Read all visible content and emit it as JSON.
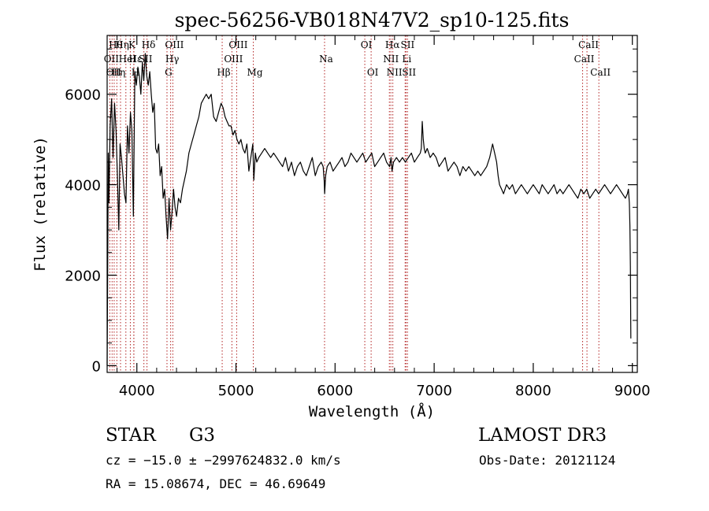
{
  "chart_data": {
    "type": "line",
    "title": "spec-56256-VB018N47V2_sp10-125.fits",
    "xlabel": "Wavelength (Å)",
    "ylabel": "Flux (relative)",
    "xlim": [
      3700,
      9050
    ],
    "ylim": [
      -150,
      7300
    ],
    "x_ticks": [
      4000,
      5000,
      6000,
      7000,
      8000,
      9000
    ],
    "y_ticks": [
      0,
      2000,
      4000,
      6000
    ],
    "grid": false,
    "series": [
      {
        "x": [
          3700,
          3712,
          3718,
          3730,
          3745,
          3760,
          3775,
          3790,
          3805,
          3818,
          3830,
          3845,
          3860,
          3875,
          3890,
          3905,
          3920,
          3935,
          3950,
          3965,
          3980,
          3995,
          4010,
          4025,
          4040,
          4055,
          4070,
          4085,
          4100,
          4115,
          4130,
          4145,
          4160,
          4175,
          4190,
          4205,
          4220,
          4235,
          4250,
          4265,
          4280,
          4295,
          4310,
          4325,
          4340,
          4355,
          4370,
          4385,
          4400,
          4420,
          4440,
          4460,
          4480,
          4500,
          4525,
          4550,
          4575,
          4600,
          4625,
          4650,
          4675,
          4700,
          4725,
          4750,
          4775,
          4800,
          4825,
          4850,
          4870,
          4890,
          4910,
          4930,
          4950,
          4970,
          4990,
          5010,
          5030,
          5050,
          5070,
          5090,
          5110,
          5130,
          5150,
          5170,
          5180,
          5195,
          5210,
          5230,
          5260,
          5290,
          5320,
          5350,
          5380,
          5410,
          5440,
          5470,
          5500,
          5530,
          5560,
          5590,
          5620,
          5650,
          5680,
          5710,
          5740,
          5770,
          5800,
          5830,
          5860,
          5880,
          5890,
          5895,
          5905,
          5920,
          5950,
          5980,
          6010,
          6040,
          6070,
          6100,
          6130,
          6160,
          6190,
          6220,
          6250,
          6280,
          6310,
          6340,
          6370,
          6400,
          6430,
          6460,
          6490,
          6520,
          6550,
          6565,
          6575,
          6590,
          6620,
          6650,
          6680,
          6710,
          6740,
          6770,
          6800,
          6830,
          6860,
          6870,
          6880,
          6890,
          6900,
          6910,
          6930,
          6960,
          6990,
          7020,
          7050,
          7080,
          7110,
          7140,
          7170,
          7200,
          7230,
          7260,
          7290,
          7320,
          7350,
          7380,
          7410,
          7440,
          7470,
          7500,
          7530,
          7560,
          7590,
          7610,
          7630,
          7645,
          7660,
          7680,
          7700,
          7730,
          7760,
          7790,
          7820,
          7850,
          7880,
          7910,
          7940,
          7970,
          8000,
          8030,
          8060,
          8090,
          8120,
          8150,
          8180,
          8210,
          8240,
          8270,
          8300,
          8330,
          8360,
          8390,
          8420,
          8450,
          8480,
          8510,
          8540,
          8570,
          8600,
          8630,
          8660,
          8690,
          8720,
          8750,
          8780,
          8810,
          8840,
          8870,
          8900,
          8930,
          8950,
          8960,
          8970,
          8975,
          8980,
          8985
        ],
        "y": [
          0,
          4700,
          3600,
          5300,
          5900,
          4600,
          5800,
          5200,
          4100,
          3000,
          4900,
          4600,
          4200,
          3800,
          3600,
          5300,
          4700,
          5600,
          5200,
          3300,
          6500,
          6200,
          6600,
          6400,
          6000,
          6700,
          6300,
          6900,
          6400,
          6200,
          6500,
          6000,
          5600,
          5800,
          4800,
          4700,
          4900,
          4200,
          4400,
          3700,
          3900,
          3300,
          2800,
          3700,
          3000,
          3400,
          3900,
          3500,
          3300,
          3700,
          3600,
          3900,
          4100,
          4300,
          4700,
          4900,
          5100,
          5300,
          5500,
          5800,
          5900,
          6000,
          5900,
          6000,
          5500,
          5400,
          5600,
          5800,
          5700,
          5500,
          5400,
          5300,
          5300,
          5100,
          5200,
          5000,
          4900,
          5000,
          4800,
          4700,
          4900,
          4300,
          4600,
          4900,
          4100,
          4700,
          4500,
          4600,
          4700,
          4800,
          4700,
          4600,
          4700,
          4600,
          4500,
          4400,
          4600,
          4300,
          4500,
          4200,
          4400,
          4500,
          4300,
          4200,
          4400,
          4600,
          4200,
          4400,
          4500,
          4400,
          4100,
          3800,
          4200,
          4400,
          4500,
          4300,
          4400,
          4500,
          4600,
          4400,
          4500,
          4700,
          4600,
          4500,
          4600,
          4700,
          4500,
          4600,
          4700,
          4400,
          4500,
          4600,
          4700,
          4500,
          4400,
          4600,
          4300,
          4500,
          4600,
          4500,
          4600,
          4500,
          4600,
          4700,
          4500,
          4600,
          4700,
          4800,
          5400,
          5000,
          4800,
          4700,
          4800,
          4600,
          4700,
          4600,
          4400,
          4500,
          4600,
          4300,
          4400,
          4500,
          4400,
          4200,
          4400,
          4300,
          4400,
          4300,
          4200,
          4300,
          4200,
          4300,
          4400,
          4600,
          4900,
          4700,
          4500,
          4200,
          4000,
          3900,
          3800,
          4000,
          3900,
          4000,
          3800,
          3900,
          4000,
          3900,
          3800,
          3900,
          4000,
          3900,
          3800,
          4000,
          3900,
          3800,
          3900,
          4000,
          3800,
          3900,
          3800,
          3900,
          4000,
          3900,
          3800,
          3700,
          3900,
          3800,
          3900,
          3700,
          3800,
          3900,
          3800,
          3900,
          4000,
          3900,
          3800,
          3900,
          4000,
          3900,
          3800,
          3700,
          3800,
          3900,
          3600,
          3100,
          2200,
          600
        ]
      }
    ],
    "lines": [
      {
        "x": 3727,
        "label": "OII",
        "row": 1
      },
      {
        "x": 3750,
        "label": "OII",
        "row": 2
      },
      {
        "x": 3771,
        "label": "Hθ",
        "row": 0
      },
      {
        "x": 3798,
        "label": "Hη",
        "row": 2
      },
      {
        "x": 3835,
        "label": "Hη",
        "row": 0
      },
      {
        "x": 3889,
        "label": "HeI",
        "row": 1
      },
      {
        "x": 3934,
        "label": "K",
        "row": 0
      },
      {
        "x": 3969,
        "label": "Hε",
        "row": 1
      },
      {
        "x": 3970,
        "label": "H",
        "row": 2
      },
      {
        "x": 4071,
        "label": "SII",
        "row": 1
      },
      {
        "x": 4102,
        "label": "Hδ",
        "row": 0
      },
      {
        "x": 4304,
        "label": "G",
        "row": 2
      },
      {
        "x": 4341,
        "label": "Hγ",
        "row": 1
      },
      {
        "x": 4363,
        "label": "OIII",
        "row": 0
      },
      {
        "x": 4861,
        "label": "Hβ",
        "row": 2
      },
      {
        "x": 4959,
        "label": "OIII",
        "row": 1
      },
      {
        "x": 5007,
        "label": "OIII",
        "row": 0
      },
      {
        "x": 5175,
        "label": "Mg",
        "row": 2
      },
      {
        "x": 5894,
        "label": "Na",
        "row": 1
      },
      {
        "x": 6300,
        "label": "OI",
        "row": 0
      },
      {
        "x": 6364,
        "label": "OI",
        "row": 2
      },
      {
        "x": 6548,
        "label": "NII",
        "row": 1
      },
      {
        "x": 6563,
        "label": "Hα",
        "row": 0
      },
      {
        "x": 6583,
        "label": "NII",
        "row": 2
      },
      {
        "x": 6707,
        "label": "Li",
        "row": 1
      },
      {
        "x": 6716,
        "label": "SII",
        "row": 0
      },
      {
        "x": 6731,
        "label": "SII",
        "row": 2
      },
      {
        "x": 8498,
        "label": "CaII",
        "row": 1
      },
      {
        "x": 8542,
        "label": "CaII",
        "row": 0
      },
      {
        "x": 8662,
        "label": "CaII",
        "row": 2
      }
    ]
  },
  "info": {
    "object_class": "STAR",
    "subclass": "G3",
    "survey": "LAMOST DR3",
    "cz_line": "cz = −15.0 ± −2997624832.0 km/s",
    "obs_date_line": "Obs-Date: 20121124",
    "radec_line": "RA =  15.08674, DEC =  46.69649"
  }
}
